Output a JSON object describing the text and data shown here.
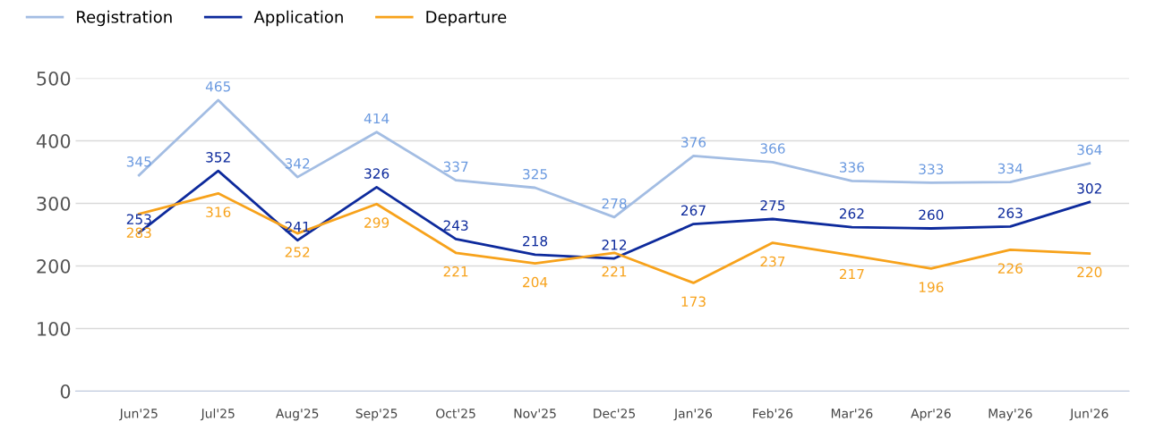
{
  "chart_data": {
    "type": "line",
    "categories": [
      "Jun'25",
      "Jul'25",
      "Aug'25",
      "Sep'25",
      "Oct'25",
      "Nov'25",
      "Dec'25",
      "Jan'26",
      "Feb'26",
      "Mar'26",
      "Apr'26",
      "May'26",
      "Jun'26"
    ],
    "series": [
      {
        "name": "Registration",
        "color": "#a3bde3",
        "values": [
          345,
          465,
          342,
          414,
          337,
          325,
          278,
          376,
          366,
          336,
          333,
          334,
          364
        ]
      },
      {
        "name": "Application",
        "color": "#0d2a9c",
        "values": [
          253,
          352,
          241,
          326,
          243,
          218,
          212,
          267,
          275,
          262,
          260,
          263,
          302
        ]
      },
      {
        "name": "Departure",
        "color": "#f7a21b",
        "values": [
          283,
          316,
          252,
          299,
          221,
          204,
          221,
          173,
          237,
          217,
          196,
          226,
          220
        ]
      }
    ],
    "ylim": [
      0,
      500
    ],
    "yticks": [
      0,
      100,
      200,
      300,
      400,
      500
    ],
    "grid": "y",
    "legend": "top left",
    "data_labels": true,
    "marker": "none",
    "line_style": "solid"
  }
}
